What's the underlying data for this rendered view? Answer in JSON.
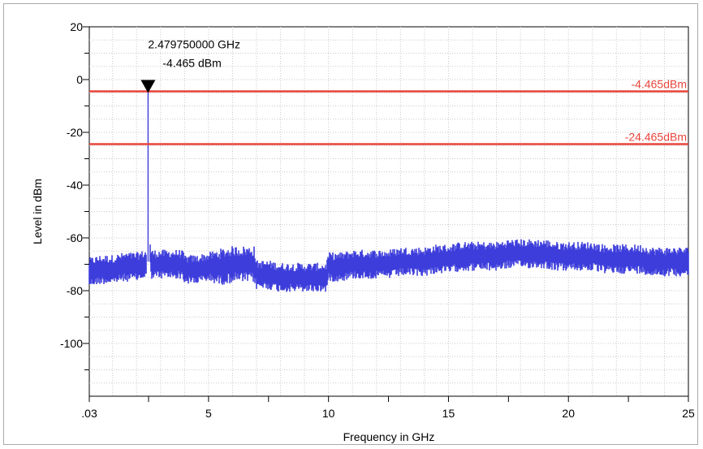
{
  "chart_data": {
    "type": "line",
    "title": "",
    "xlabel": "Frequency in GHz",
    "ylabel": "Level in dBm",
    "xlim": [
      0.03,
      25
    ],
    "ylim": [
      -120,
      20
    ],
    "x_ticks": [
      {
        "value": 0.03,
        "label": ".03"
      },
      {
        "value": 5,
        "label": "5"
      },
      {
        "value": 10,
        "label": "10"
      },
      {
        "value": 15,
        "label": "15"
      },
      {
        "value": 20,
        "label": "20"
      },
      {
        "value": 25,
        "label": "25"
      }
    ],
    "x_minor_ticks": [
      2.5,
      7.5,
      12.5,
      17.5,
      22.5
    ],
    "y_ticks": [
      {
        "value": 20,
        "label": "20"
      },
      {
        "value": 0,
        "label": "0"
      },
      {
        "value": -20,
        "label": "-20"
      },
      {
        "value": -40,
        "label": "-40"
      },
      {
        "value": -60,
        "label": "-60"
      },
      {
        "value": -80,
        "label": "-80"
      },
      {
        "value": -100,
        "label": "-100"
      }
    ],
    "y_minor_ticks": [
      10,
      -10,
      -30,
      -50,
      -70,
      -90,
      -110
    ],
    "grid": true,
    "legend": "none",
    "series": [
      {
        "color": "#3d3ddc",
        "x": [
          0.03,
          0.5,
          1.0,
          1.5,
          2.0,
          2.4,
          2.45,
          2.48,
          2.51,
          2.56,
          2.6,
          3.0,
          3.5,
          3.9,
          4.0,
          4.5,
          5.0,
          5.5,
          6.0,
          6.5,
          6.9,
          7.0,
          7.5,
          8.0,
          8.5,
          9.0,
          9.5,
          9.9,
          10.0,
          10.5,
          11.0,
          11.5,
          12.0,
          12.5,
          13.0,
          13.5,
          14.0,
          14.5,
          15.0,
          15.5,
          16.0,
          16.5,
          17.0,
          17.5,
          18.0,
          18.5,
          19.0,
          19.5,
          20.0,
          20.5,
          21.0,
          21.5,
          22.0,
          22.5,
          23.0,
          23.5,
          24.0,
          24.5,
          25.0
        ],
        "y": [
          -73,
          -72,
          -72,
          -71,
          -71,
          -70,
          -69,
          -4.465,
          -69,
          -65,
          -70,
          -70,
          -70,
          -70,
          -72,
          -72,
          -71,
          -71,
          -70,
          -70,
          -70,
          -74,
          -74,
          -75,
          -75,
          -75,
          -75,
          -75,
          -71,
          -71,
          -70,
          -70,
          -70,
          -70,
          -69,
          -69,
          -69,
          -68,
          -68,
          -67,
          -67,
          -67,
          -67,
          -66,
          -66,
          -66,
          -66,
          -67,
          -67,
          -67,
          -67,
          -68,
          -68,
          -68,
          -68,
          -69,
          -69,
          -69,
          -69
        ],
        "band_spread": [
          4,
          4,
          4,
          4,
          4,
          4,
          4,
          0,
          4,
          4,
          4,
          4,
          4,
          4,
          4,
          4,
          4,
          5,
          5,
          5,
          5,
          4,
          4,
          4,
          4,
          4,
          4,
          4,
          4,
          4,
          4,
          4,
          4,
          4,
          4,
          4,
          4,
          4,
          4,
          4,
          4,
          4,
          4,
          4,
          4,
          4,
          4,
          4,
          4,
          4,
          4,
          4,
          4,
          4,
          4,
          4,
          4,
          4,
          4
        ]
      }
    ],
    "limit_lines": [
      {
        "value": -4.465,
        "label": "-4.465dBm",
        "color": "#e8453c"
      },
      {
        "value": -24.465,
        "label": "-24.465dBm",
        "color": "#e8453c"
      }
    ],
    "marker": {
      "x": 2.47975,
      "y": -4.465,
      "frequency_label": "2.479750000 GHz",
      "level_label": "-4.465 dBm"
    }
  }
}
